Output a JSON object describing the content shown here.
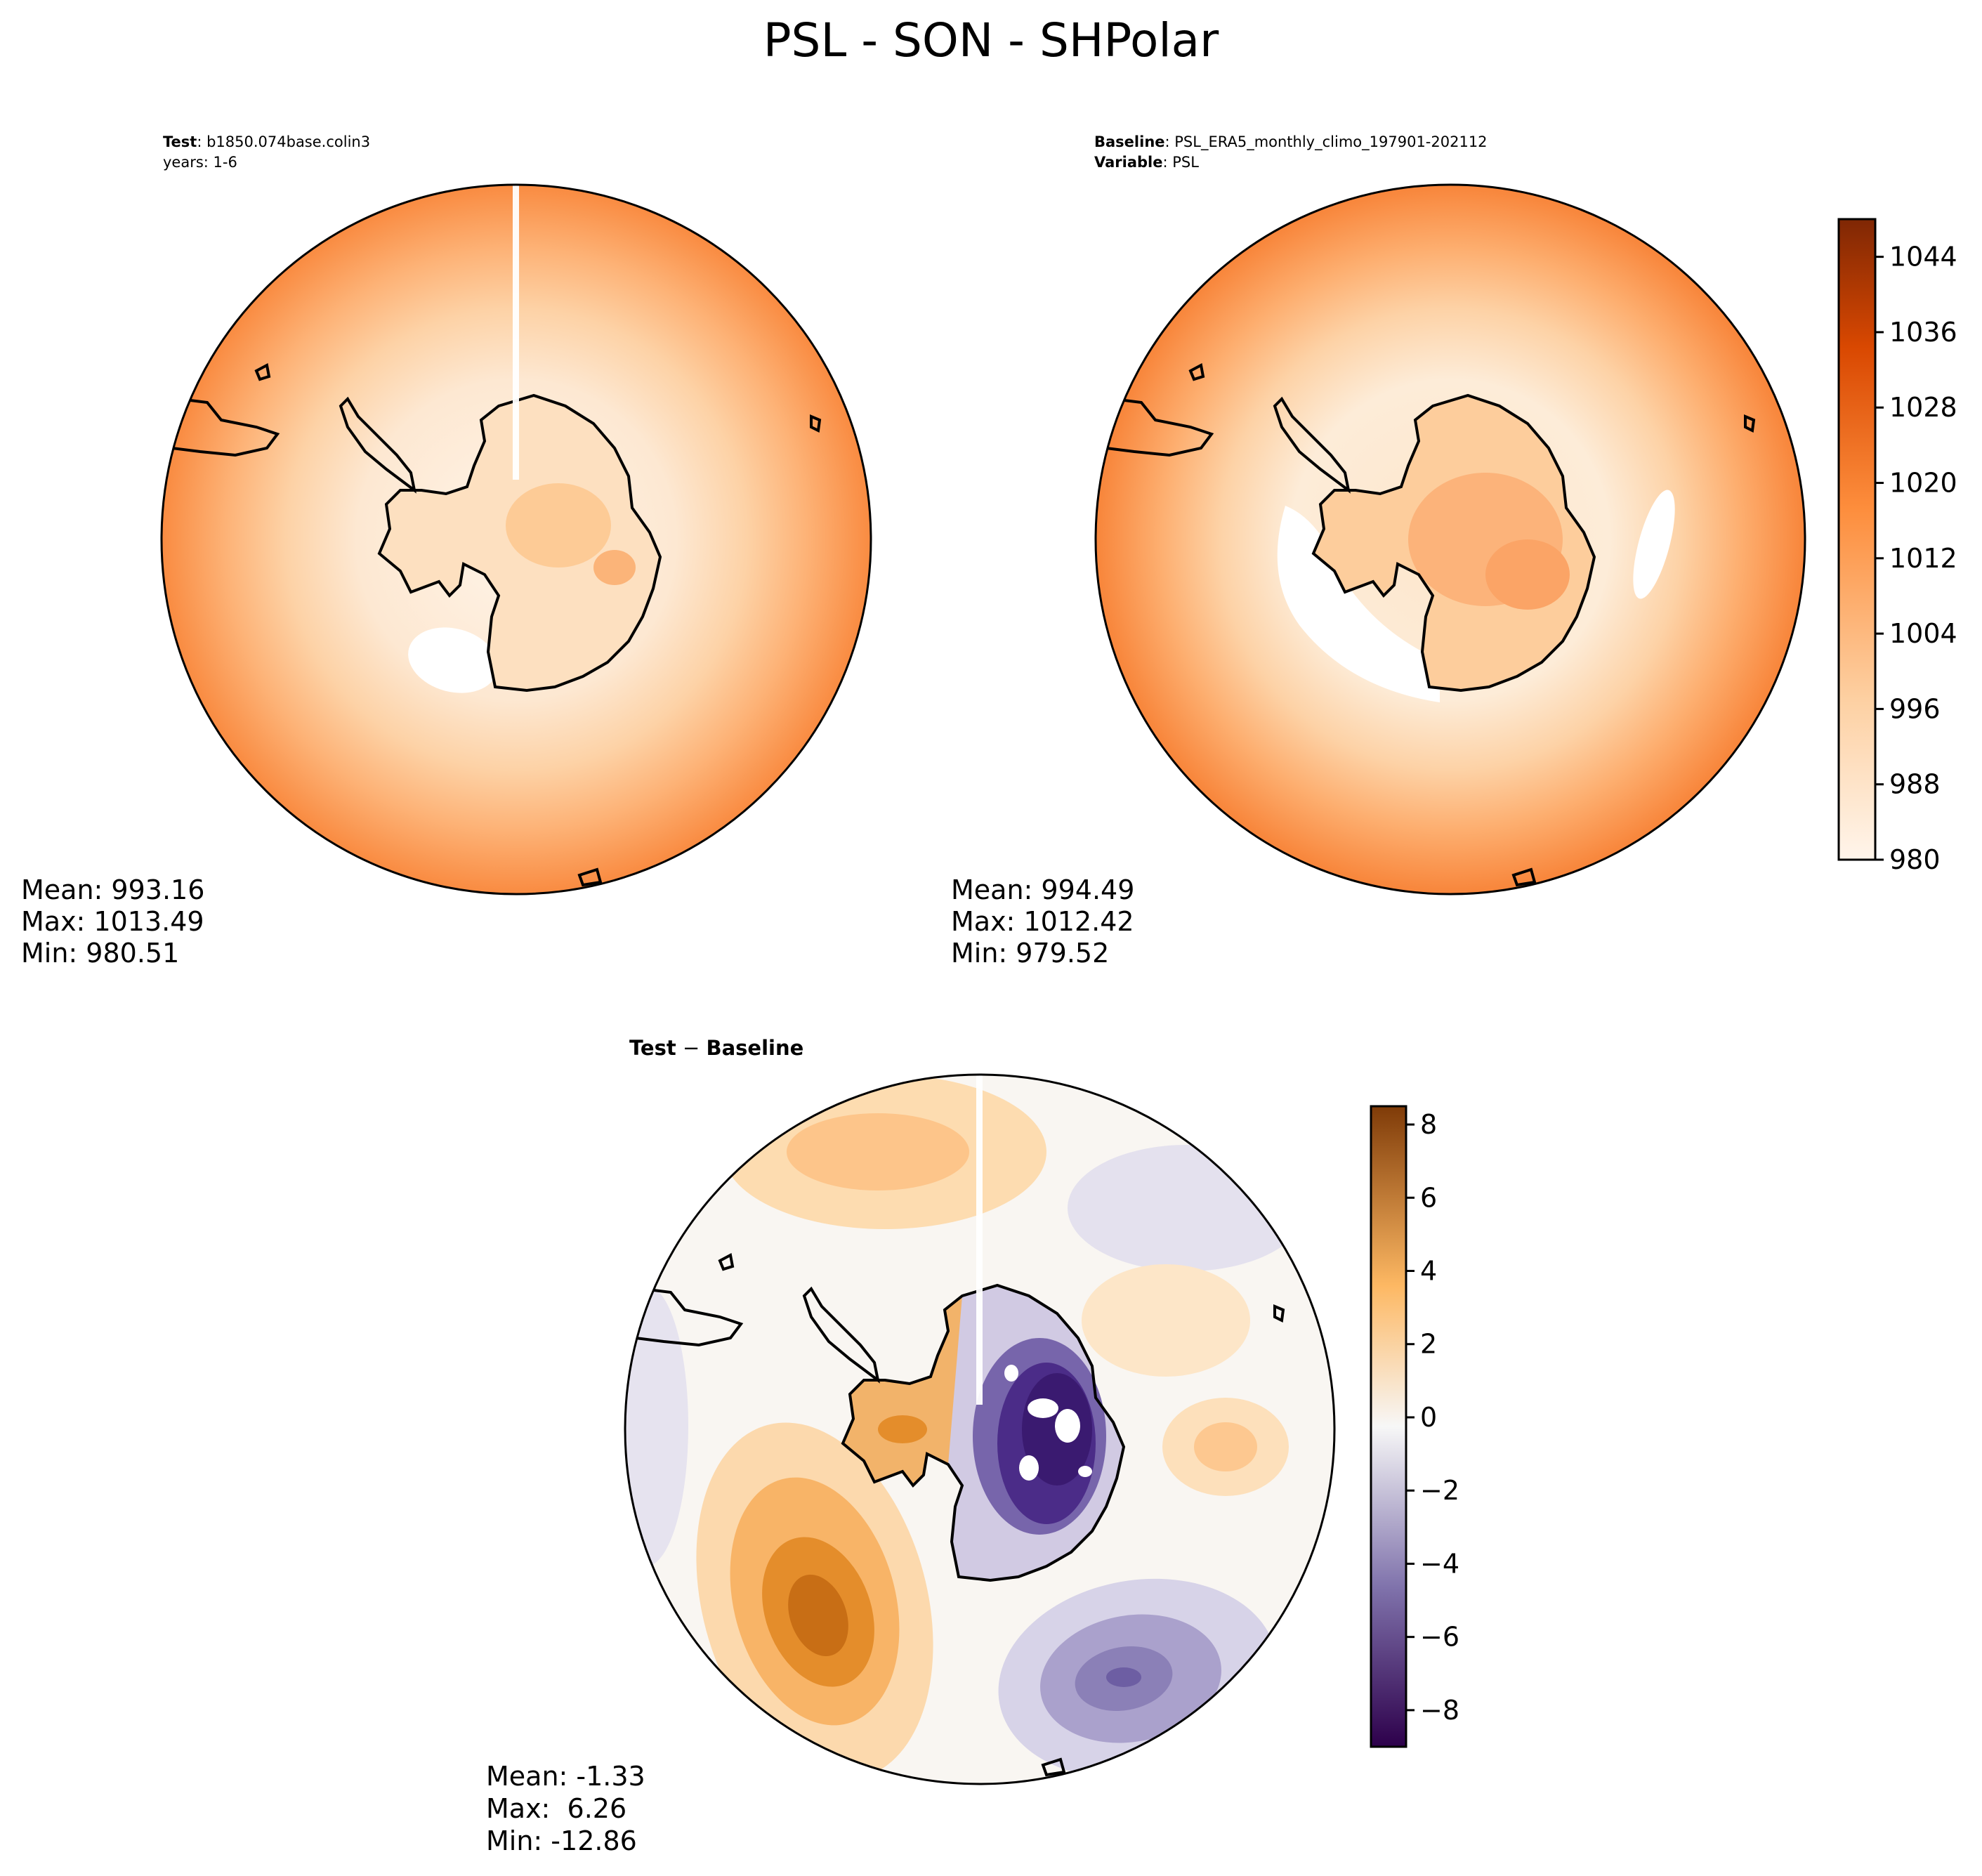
{
  "figure": {
    "title": "PSL - SON - SHPolar",
    "test_panel": {
      "label_bold": "Test",
      "label_rest": ": b1850.074base.colin3",
      "line2": "years: 1-6",
      "stats": {
        "mean": "Mean: 993.16",
        "max": "Max: 1013.49",
        "min": "Min: 980.51"
      }
    },
    "baseline_panel": {
      "line1_bold": "Baseline",
      "line1_rest": ": PSL_ERA5_monthly_climo_197901-202112",
      "line2_bold": "Variable",
      "line2_rest": ": PSL",
      "stats": {
        "mean": "Mean: 994.49",
        "max": "Max: 1012.42",
        "min": "Min: 979.52"
      }
    },
    "diff_panel": {
      "title_a": "Test",
      "title_minus": " − ",
      "title_b": "Baseline",
      "stats": {
        "mean": "Mean: -1.33",
        "max": "Max:  6.26",
        "min": "Min: -12.86"
      }
    },
    "colorbar_top": {
      "range": [
        980,
        1048
      ],
      "ticks": [
        "980",
        "988",
        "996",
        "1004",
        "1012",
        "1020",
        "1028",
        "1036",
        "1044"
      ],
      "colors": [
        "#fff5eb",
        "#fdd0a2",
        "#fd8d3c",
        "#d94801",
        "#7f2704"
      ]
    },
    "colorbar_diff": {
      "range": [
        -9,
        8.5
      ],
      "ticks": [
        "−8",
        "−6",
        "−4",
        "−2",
        "0",
        "2",
        "4",
        "6",
        "8"
      ],
      "colors": [
        "#2d004b",
        "#8073ac",
        "#f7f7f7",
        "#fdb863",
        "#7f3b08"
      ]
    }
  }
}
